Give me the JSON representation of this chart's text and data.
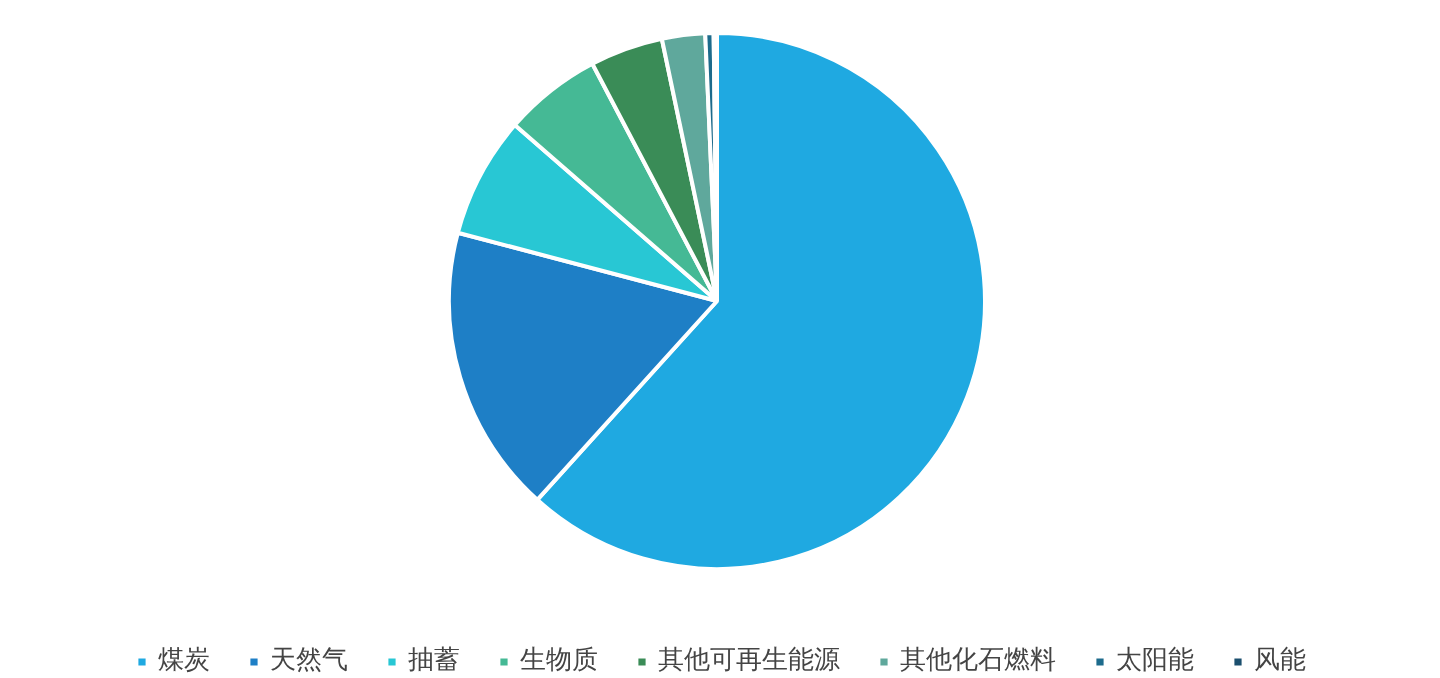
{
  "chart_data": {
    "type": "pie",
    "categories": [
      "煤炭",
      "天然气",
      "抽蓄",
      "生物质",
      "其他可再生能源",
      "其他化石燃料",
      "太阳能",
      "风能"
    ],
    "values": [
      61.7,
      17.4,
      7.3,
      5.9,
      4.4,
      2.6,
      0.5,
      0.2
    ],
    "colors": [
      "#1fa9e1",
      "#1e7fc6",
      "#28c7d4",
      "#45b995",
      "#3a8c57",
      "#5fa89c",
      "#1d6b8c",
      "#1b4f6e"
    ],
    "legend": "bottom"
  }
}
